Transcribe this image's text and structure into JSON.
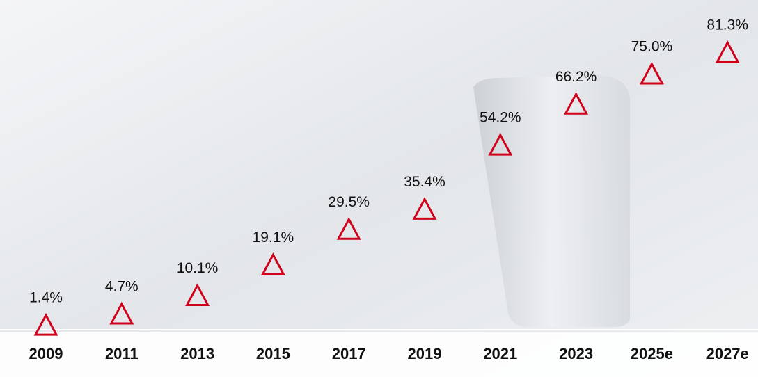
{
  "chart_data": {
    "type": "scatter",
    "marker": "triangle",
    "color": "#d0021b",
    "categories": [
      "2009",
      "2011",
      "2013",
      "2015",
      "2017",
      "2019",
      "2021",
      "2023",
      "2025e",
      "2027e"
    ],
    "values": [
      1.4,
      4.7,
      10.1,
      19.1,
      29.5,
      35.4,
      54.2,
      66.2,
      75.0,
      81.3
    ],
    "value_labels": [
      "1.4%",
      "4.7%",
      "10.1%",
      "19.1%",
      "29.5%",
      "35.4%",
      "54.2%",
      "66.2%",
      "75.0%",
      "81.3%"
    ]
  }
}
